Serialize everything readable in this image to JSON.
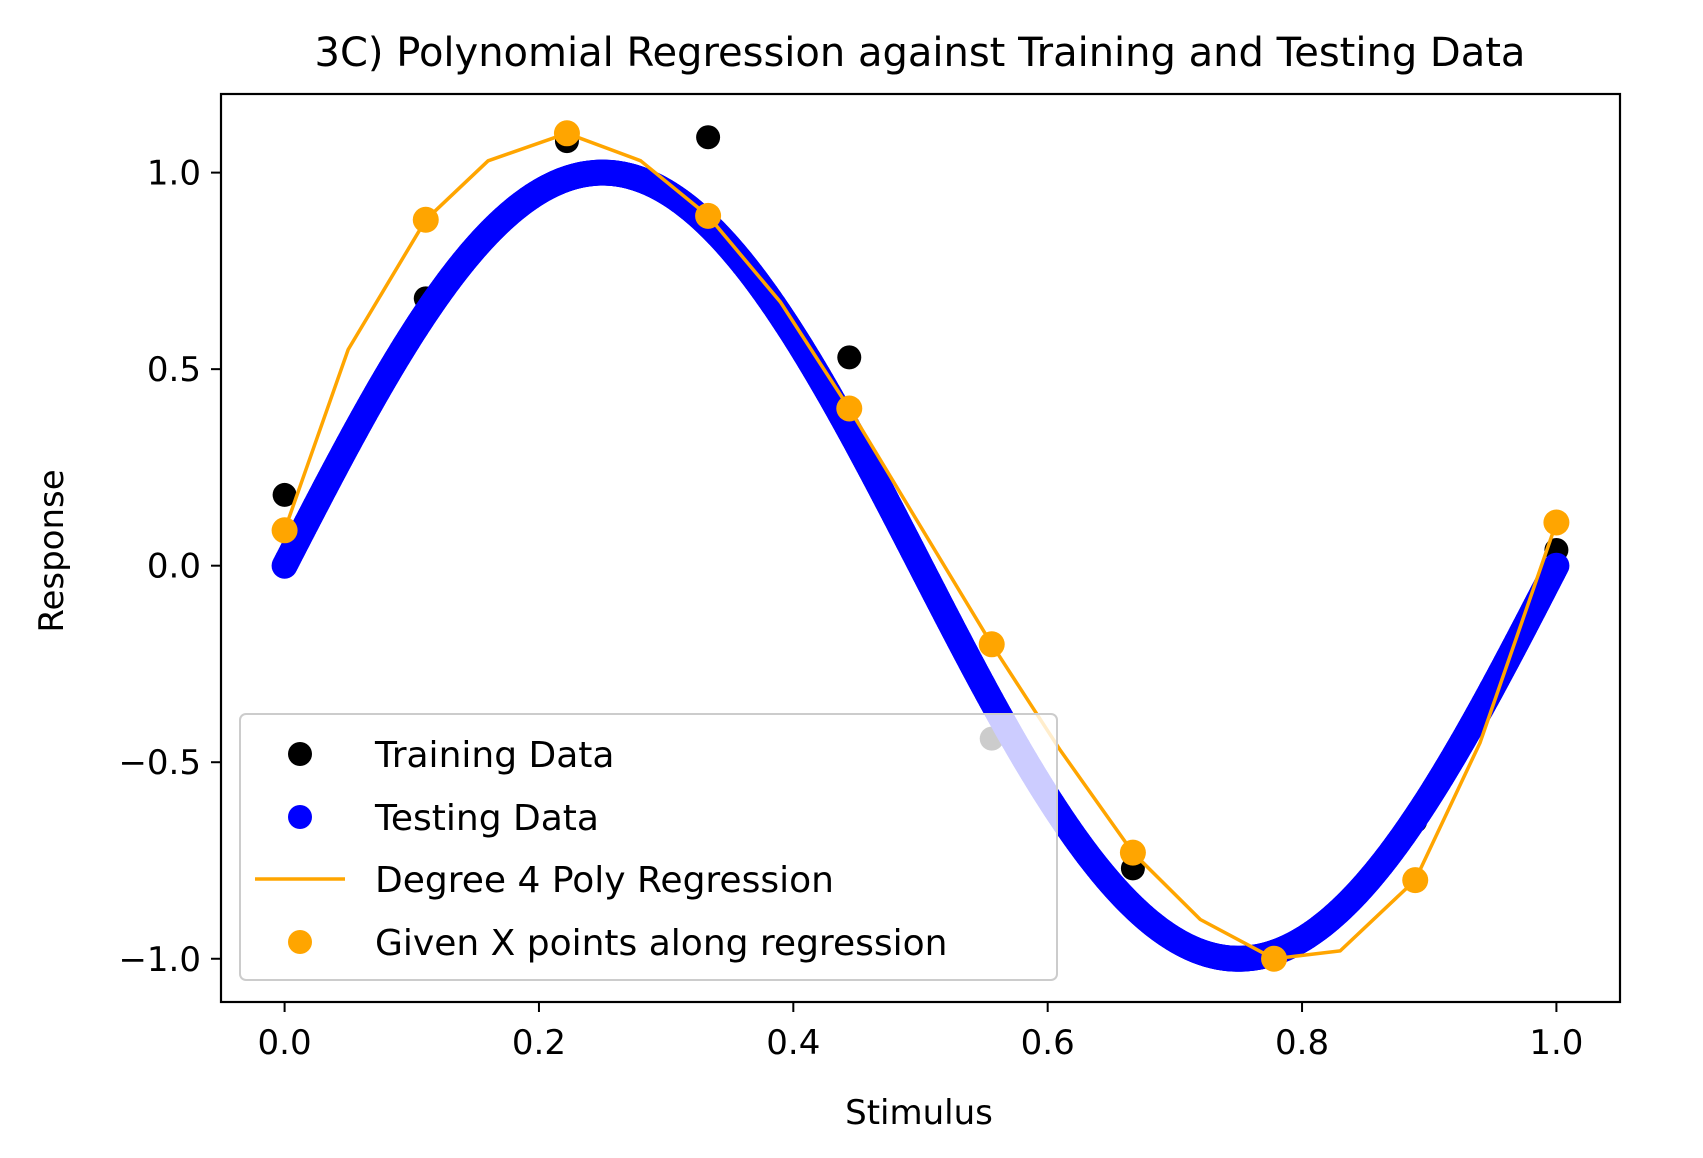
{
  "chart_data": {
    "type": "scatter",
    "title": "3C) Polynomial Regression against Training and Testing Data",
    "xlabel": "Stimulus",
    "ylabel": "Response",
    "xlim": [
      -0.05,
      1.05
    ],
    "ylim": [
      -1.11,
      1.2
    ],
    "xticks": [
      0.0,
      0.2,
      0.4,
      0.6,
      0.8,
      1.0
    ],
    "xtick_labels": [
      "0.0",
      "0.2",
      "0.4",
      "0.6",
      "0.8",
      "1.0"
    ],
    "yticks": [
      -1.0,
      -0.5,
      0.0,
      0.5,
      1.0
    ],
    "ytick_labels": [
      "−1.0",
      "−0.5",
      "0.0",
      "0.5",
      "1.0"
    ],
    "grid": false,
    "legend_position": "lower-left",
    "series": [
      {
        "name": "Training Data",
        "kind": "scatter",
        "color": "#000000",
        "x": [
          0.0,
          0.111,
          0.222,
          0.333,
          0.444,
          0.556,
          0.667,
          0.778,
          0.889,
          1.0
        ],
        "y": [
          0.18,
          0.68,
          1.08,
          1.09,
          0.53,
          -0.44,
          -0.77,
          -1.0,
          -0.65,
          0.04
        ]
      },
      {
        "name": "Testing Data",
        "kind": "scatter-dense",
        "color": "#0000ff",
        "function": "sin(2πx)",
        "x_range": [
          0.0,
          1.0
        ],
        "n_points": 1000
      },
      {
        "name": "Degree 4 Poly Regression",
        "kind": "line",
        "color": "#ffa500",
        "x": [
          0.0,
          0.05,
          0.111,
          0.16,
          0.222,
          0.28,
          0.333,
          0.39,
          0.444,
          0.5,
          0.556,
          0.61,
          0.667,
          0.72,
          0.778,
          0.83,
          0.889,
          0.94,
          1.0
        ],
        "y": [
          0.09,
          0.55,
          0.88,
          1.03,
          1.1,
          1.03,
          0.89,
          0.67,
          0.4,
          0.1,
          -0.2,
          -0.47,
          -0.73,
          -0.9,
          -1.0,
          -0.98,
          -0.8,
          -0.45,
          0.11
        ]
      },
      {
        "name": "Given X points along regression",
        "kind": "scatter",
        "color": "#ffa500",
        "x": [
          0.0,
          0.111,
          0.222,
          0.333,
          0.444,
          0.556,
          0.667,
          0.778,
          0.889,
          1.0
        ],
        "y": [
          0.09,
          0.88,
          1.1,
          0.89,
          0.4,
          -0.2,
          -0.73,
          -1.0,
          -0.8,
          0.11
        ]
      }
    ]
  }
}
